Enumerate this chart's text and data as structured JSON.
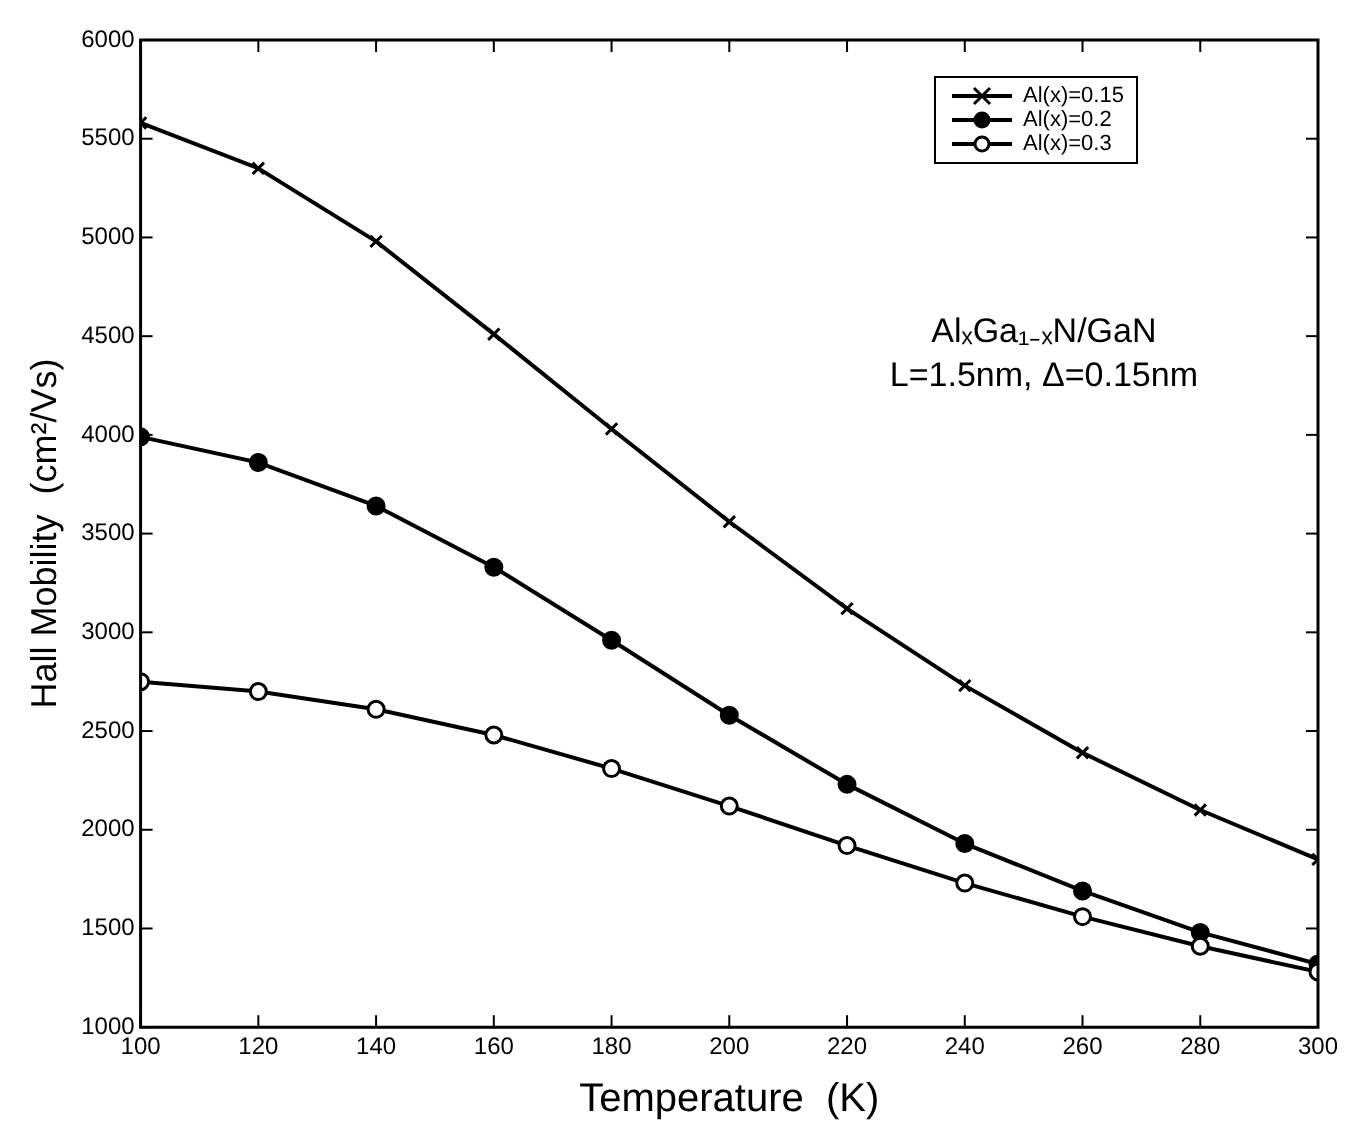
{
  "chart_data": {
    "type": "line",
    "xlabel": "Temperature  (K)",
    "ylabel": "Hall Mobility  (cm²/Vs)",
    "x": [
      100,
      120,
      140,
      160,
      180,
      200,
      220,
      240,
      260,
      280,
      300
    ],
    "series": [
      {
        "name": "Al(x)=0.15",
        "color": "#000000",
        "marker": "cross",
        "values": [
          5580,
          5350,
          4980,
          4510,
          4030,
          3560,
          3120,
          2730,
          2390,
          2100,
          1850
        ]
      },
      {
        "name": "Al(x)=0.2",
        "color": "#000000",
        "marker": "circle",
        "values": [
          3990,
          3860,
          3640,
          3330,
          2960,
          2580,
          2230,
          1930,
          1690,
          1480,
          1320
        ]
      },
      {
        "name": "Al(x)=0.3",
        "color": "#000000",
        "marker": "open circle",
        "values": [
          2750,
          2700,
          2610,
          2480,
          2310,
          2120,
          1920,
          1730,
          1560,
          1410,
          1280
        ]
      }
    ],
    "xlim": [
      100,
      300
    ],
    "xticks": [
      100,
      120,
      140,
      160,
      180,
      200,
      220,
      240,
      260,
      280,
      300
    ],
    "ylim": [
      1000,
      6000
    ],
    "yticks": [
      1000,
      1500,
      2000,
      2500,
      3000,
      3500,
      4000,
      4500,
      5000,
      5500,
      6000
    ],
    "grid": false,
    "legend": "top right",
    "line_style": "solid",
    "annotations": [
      "AlₓGa₁₋ₓN/GaN",
      "L=1.5nm, Δ=0.15nm"
    ]
  }
}
